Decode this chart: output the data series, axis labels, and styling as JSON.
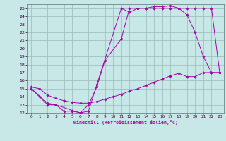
{
  "xlabel": "Windchill (Refroidissement éolien,°C)",
  "xlim": [
    -0.5,
    23.5
  ],
  "ylim": [
    12,
    25.5
  ],
  "xticks": [
    0,
    1,
    2,
    3,
    4,
    5,
    6,
    7,
    8,
    9,
    10,
    11,
    12,
    13,
    14,
    15,
    16,
    17,
    18,
    19,
    20,
    21,
    22,
    23
  ],
  "yticks": [
    12,
    13,
    14,
    15,
    16,
    17,
    18,
    19,
    20,
    21,
    22,
    23,
    24,
    25
  ],
  "bg_color": "#c8e8e8",
  "line_color": "#aa00aa",
  "grid_color": "#99bbbb",
  "line1_x": [
    0,
    1,
    2,
    3,
    4,
    5,
    6,
    7,
    8,
    9,
    11,
    12,
    13,
    14,
    15,
    16,
    17,
    18,
    19,
    20,
    21,
    22,
    23
  ],
  "line1_y": [
    15,
    14,
    13,
    13,
    12.2,
    12.2,
    12,
    13,
    15.2,
    18.5,
    21.2,
    25,
    25,
    25,
    25.2,
    25.2,
    25.3,
    25,
    24.2,
    22,
    19,
    17,
    17
  ],
  "line2_x": [
    0,
    2,
    3,
    5,
    6,
    7,
    8,
    11,
    12,
    13,
    14,
    15,
    16,
    17,
    18,
    19,
    20,
    21,
    22,
    23
  ],
  "line2_y": [
    15,
    13.2,
    13,
    12.3,
    12,
    12.2,
    15.5,
    25,
    24.5,
    25,
    25,
    25,
    25,
    25,
    25,
    25,
    25,
    25,
    25,
    17
  ],
  "line3_x": [
    0,
    1,
    2,
    3,
    4,
    5,
    6,
    7,
    8,
    9,
    10,
    11,
    12,
    13,
    14,
    15,
    16,
    17,
    18,
    19,
    20,
    21,
    22,
    23
  ],
  "line3_y": [
    15.2,
    15,
    14.2,
    13.8,
    13.5,
    13.3,
    13.2,
    13.2,
    13.4,
    13.7,
    14.0,
    14.3,
    14.7,
    15.0,
    15.4,
    15.8,
    16.2,
    16.6,
    16.9,
    16.5,
    16.5,
    17.0,
    17.0,
    17.0
  ]
}
